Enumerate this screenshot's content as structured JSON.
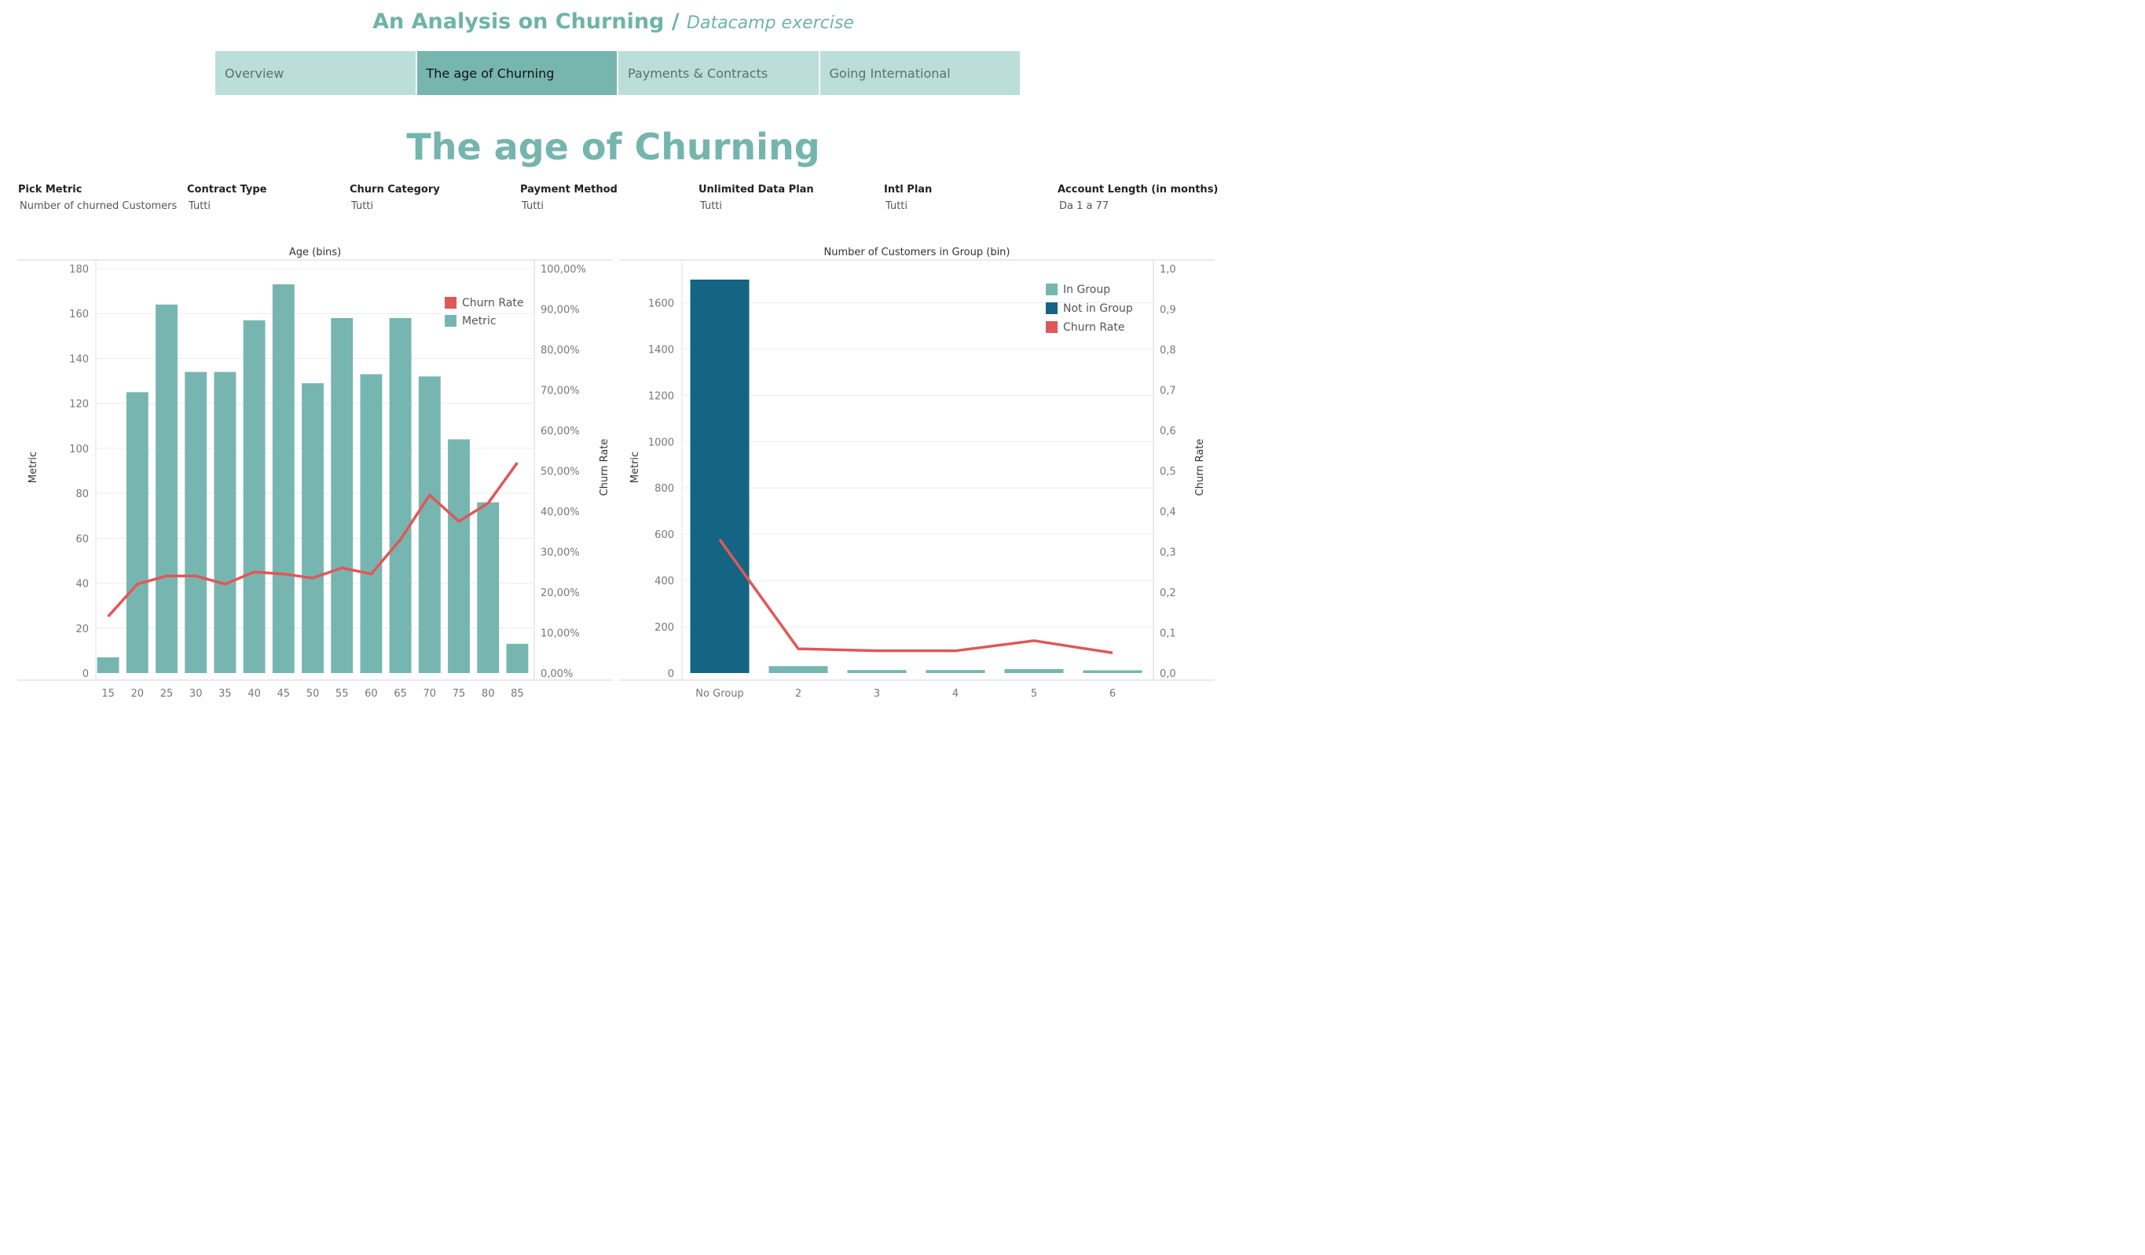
{
  "header": {
    "title": "An Analysis on Churning /",
    "subtitle": "Datacamp exercise"
  },
  "tabs": [
    {
      "label": "Overview",
      "active": false
    },
    {
      "label": "The age of Churning",
      "active": true
    },
    {
      "label": "Payments & Contracts",
      "active": false
    },
    {
      "label": "Going International",
      "active": false
    }
  ],
  "page_title": "The age of Churning",
  "filters": [
    {
      "label": "Pick Metric",
      "value": "Number of churned Customers"
    },
    {
      "label": "Contract Type",
      "value": "Tutti"
    },
    {
      "label": "Churn Category",
      "value": "Tutti"
    },
    {
      "label": "Payment Method",
      "value": "Tutti"
    },
    {
      "label": "Unlimited Data Plan",
      "value": "Tutti"
    },
    {
      "label": "Intl Plan",
      "value": "Tutti"
    },
    {
      "label": "Account Length (in months)",
      "value": "Da 1 a 77"
    }
  ],
  "colors": {
    "accent": "#74b5ad",
    "bar": "#77b6b0",
    "dark_bar": "#136583",
    "line": "#e05759",
    "grid": "#ececec",
    "axis_text": "#777777"
  },
  "chart_data": [
    {
      "type": "bar",
      "title": "Age (bins)",
      "ylabel": "Metric",
      "y2label": "Churn Rate",
      "categories": [
        "15",
        "20",
        "25",
        "30",
        "35",
        "40",
        "45",
        "50",
        "55",
        "60",
        "65",
        "70",
        "75",
        "80",
        "85"
      ],
      "series": [
        {
          "name": "Metric",
          "values": [
            7,
            125,
            164,
            134,
            134,
            157,
            173,
            129,
            158,
            133,
            158,
            132,
            104,
            76,
            13
          ]
        },
        {
          "name": "Churn Rate",
          "axis": "right",
          "values": [
            0.14,
            0.22,
            0.24,
            0.24,
            0.22,
            0.25,
            0.245,
            0.235,
            0.26,
            0.245,
            0.33,
            0.44,
            0.375,
            0.42,
            0.52
          ]
        }
      ],
      "ylim": [
        0,
        180
      ],
      "yticks": [
        0,
        20,
        40,
        60,
        80,
        100,
        120,
        140,
        160,
        180
      ],
      "y2lim": [
        0,
        1
      ],
      "y2ticks": [
        "0,00%",
        "10,00%",
        "20,00%",
        "30,00%",
        "40,00%",
        "50,00%",
        "60,00%",
        "70,00%",
        "80,00%",
        "90,00%",
        "100,00%"
      ],
      "legend": [
        "Churn Rate",
        "Metric"
      ],
      "legend_position": "top-right",
      "grid": true
    },
    {
      "type": "bar",
      "title": "Number of Customers in Group (bin)",
      "ylabel": "Metric",
      "y2label": "Churn Rate",
      "categories": [
        "No Group",
        "2",
        "3",
        "4",
        "5",
        "6"
      ],
      "series": [
        {
          "name": "Metric",
          "values": [
            1700,
            30,
            13,
            13,
            17,
            12
          ],
          "colors_by_group": [
            "Not in Group",
            "In Group",
            "In Group",
            "In Group",
            "In Group",
            "In Group"
          ]
        },
        {
          "name": "Churn Rate",
          "axis": "right",
          "values": [
            0.33,
            0.06,
            0.055,
            0.055,
            0.08,
            0.05
          ]
        }
      ],
      "ylim": [
        0,
        1700
      ],
      "yticks": [
        0,
        200,
        400,
        600,
        800,
        1000,
        1200,
        1400,
        1600
      ],
      "y2lim": [
        0,
        1
      ],
      "y2ticks": [
        "0,0",
        "0,1",
        "0,2",
        "0,3",
        "0,4",
        "0,5",
        "0,6",
        "0,7",
        "0,8",
        "0,9",
        "1,0"
      ],
      "legend": [
        "In Group",
        "Not in Group",
        "Churn Rate"
      ],
      "legend_position": "top-right",
      "grid": true
    }
  ]
}
